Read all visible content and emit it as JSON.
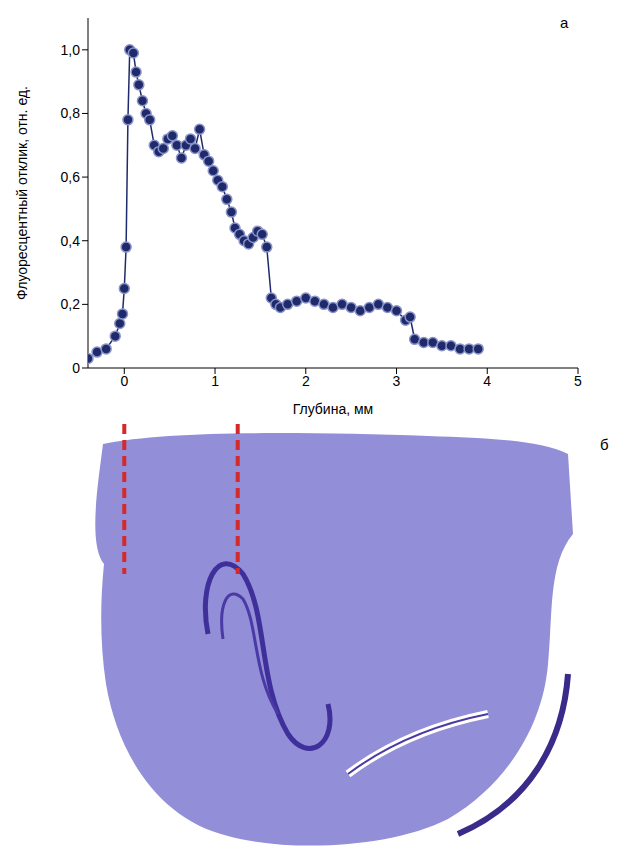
{
  "chart_data": {
    "type": "line",
    "marker": "o",
    "color": "#1f2a6b",
    "grid": false,
    "panel_labels": [
      "а",
      "б"
    ],
    "xlabel": "Глубина, мм",
    "ylabel": "Флуоресцентный отклик, отн. ед.",
    "xlim": [
      -0.4,
      5
    ],
    "xticks": [
      0,
      1,
      2,
      3,
      4,
      5
    ],
    "ylim": [
      0,
      1.1
    ],
    "yticks": [
      0,
      {
        "value": 0.2,
        "label": "0,2"
      },
      {
        "value": 0.4,
        "label": "0,4"
      },
      {
        "value": 0.6,
        "label": "0,6"
      },
      {
        "value": 0.8,
        "label": "0,8"
      },
      {
        "value": 1.0,
        "label": "1,0"
      }
    ],
    "reference_lines": [
      0,
      1.25
    ],
    "x": [
      -0.4,
      -0.3,
      -0.2,
      -0.1,
      -0.05,
      -0.02,
      0,
      0.02,
      0.04,
      0.06,
      0.1,
      0.13,
      0.16,
      0.2,
      0.24,
      0.28,
      0.33,
      0.38,
      0.43,
      0.48,
      0.53,
      0.58,
      0.63,
      0.68,
      0.73,
      0.78,
      0.83,
      0.88,
      0.93,
      0.98,
      1.03,
      1.08,
      1.13,
      1.18,
      1.22,
      1.27,
      1.32,
      1.37,
      1.42,
      1.47,
      1.52,
      1.57,
      1.62,
      1.67,
      1.72,
      1.8,
      1.9,
      2.0,
      2.1,
      2.2,
      2.3,
      2.4,
      2.5,
      2.6,
      2.7,
      2.8,
      2.9,
      3.0,
      3.1,
      3.15,
      3.2,
      3.3,
      3.4,
      3.5,
      3.6,
      3.7,
      3.8,
      3.9
    ],
    "values": [
      0.03,
      0.05,
      0.06,
      0.1,
      0.14,
      0.17,
      0.25,
      0.38,
      0.78,
      1.0,
      0.99,
      0.93,
      0.89,
      0.84,
      0.8,
      0.78,
      0.7,
      0.68,
      0.69,
      0.72,
      0.73,
      0.7,
      0.66,
      0.7,
      0.72,
      0.69,
      0.75,
      0.67,
      0.65,
      0.62,
      0.59,
      0.57,
      0.53,
      0.49,
      0.44,
      0.42,
      0.4,
      0.39,
      0.41,
      0.43,
      0.42,
      0.38,
      0.22,
      0.2,
      0.19,
      0.2,
      0.21,
      0.22,
      0.21,
      0.2,
      0.19,
      0.2,
      0.19,
      0.18,
      0.19,
      0.2,
      0.19,
      0.18,
      0.15,
      0.16,
      0.09,
      0.08,
      0.08,
      0.07,
      0.07,
      0.06,
      0.06,
      0.06
    ]
  }
}
